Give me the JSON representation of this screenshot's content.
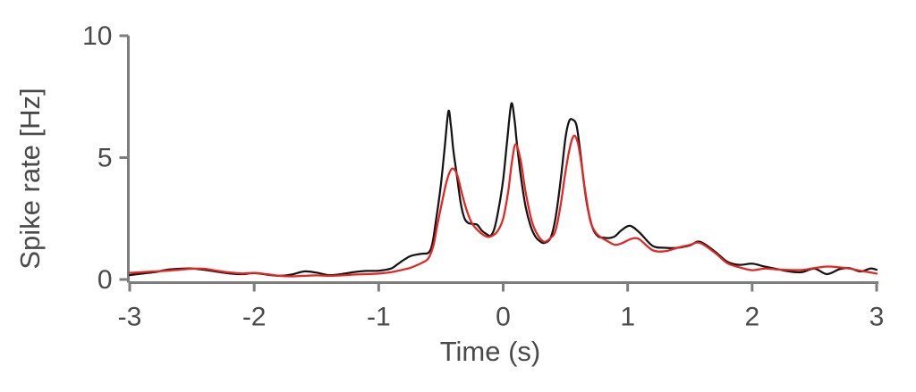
{
  "figure": {
    "ylabel": "Spike rate [Hz]",
    "xlabel": "Time (s)"
  },
  "chart_data": {
    "type": "line",
    "title": "",
    "xlabel": "Time (s)",
    "ylabel": "Spike rate [Hz]",
    "xlim": [
      -3,
      3
    ],
    "ylim": [
      0,
      10
    ],
    "x_ticks": [
      -3,
      -2,
      -1,
      0,
      1,
      2,
      3
    ],
    "y_ticks": [
      0,
      5,
      10
    ],
    "grid": false,
    "legend": "none",
    "colors": {
      "series_black": "#141414",
      "series_red": "#e62420",
      "axis": "#7d7d7d",
      "text": "#4a4a4a"
    },
    "series": [
      {
        "name": "black-trace",
        "color": "#141414",
        "points": [
          [
            -3.0,
            0.18
          ],
          [
            -2.9,
            0.24
          ],
          [
            -2.8,
            0.3
          ],
          [
            -2.7,
            0.4
          ],
          [
            -2.6,
            0.44
          ],
          [
            -2.5,
            0.45
          ],
          [
            -2.4,
            0.4
          ],
          [
            -2.3,
            0.32
          ],
          [
            -2.2,
            0.25
          ],
          [
            -2.1,
            0.22
          ],
          [
            -2.0,
            0.26
          ],
          [
            -1.9,
            0.2
          ],
          [
            -1.8,
            0.15
          ],
          [
            -1.7,
            0.2
          ],
          [
            -1.6,
            0.33
          ],
          [
            -1.5,
            0.28
          ],
          [
            -1.4,
            0.18
          ],
          [
            -1.3,
            0.22
          ],
          [
            -1.2,
            0.3
          ],
          [
            -1.1,
            0.35
          ],
          [
            -1.0,
            0.36
          ],
          [
            -0.9,
            0.45
          ],
          [
            -0.85,
            0.62
          ],
          [
            -0.8,
            0.8
          ],
          [
            -0.75,
            0.95
          ],
          [
            -0.7,
            1.02
          ],
          [
            -0.65,
            1.06
          ],
          [
            -0.6,
            1.1
          ],
          [
            -0.57,
            1.45
          ],
          [
            -0.54,
            2.4
          ],
          [
            -0.5,
            3.9
          ],
          [
            -0.47,
            5.4
          ],
          [
            -0.44,
            6.9
          ],
          [
            -0.42,
            6.3
          ],
          [
            -0.4,
            5.3
          ],
          [
            -0.37,
            4.2
          ],
          [
            -0.34,
            3.1
          ],
          [
            -0.31,
            2.5
          ],
          [
            -0.28,
            2.32
          ],
          [
            -0.25,
            2.28
          ],
          [
            -0.21,
            2.25
          ],
          [
            -0.17,
            2.0
          ],
          [
            -0.13,
            1.85
          ],
          [
            -0.1,
            1.8
          ],
          [
            -0.07,
            2.1
          ],
          [
            -0.04,
            2.8
          ],
          [
            0.0,
            4.1
          ],
          [
            0.03,
            5.6
          ],
          [
            0.065,
            7.2
          ],
          [
            0.09,
            6.6
          ],
          [
            0.11,
            5.6
          ],
          [
            0.14,
            4.3
          ],
          [
            0.18,
            3.0
          ],
          [
            0.22,
            2.2
          ],
          [
            0.26,
            1.75
          ],
          [
            0.3,
            1.55
          ],
          [
            0.33,
            1.5
          ],
          [
            0.38,
            1.7
          ],
          [
            0.42,
            2.5
          ],
          [
            0.46,
            4.0
          ],
          [
            0.5,
            5.8
          ],
          [
            0.53,
            6.5
          ],
          [
            0.56,
            6.55
          ],
          [
            0.59,
            6.3
          ],
          [
            0.62,
            5.2
          ],
          [
            0.65,
            3.9
          ],
          [
            0.68,
            2.9
          ],
          [
            0.72,
            2.1
          ],
          [
            0.76,
            1.78
          ],
          [
            0.8,
            1.72
          ],
          [
            0.85,
            1.7
          ],
          [
            0.9,
            1.78
          ],
          [
            0.95,
            2.02
          ],
          [
            1.02,
            2.2
          ],
          [
            1.1,
            1.9
          ],
          [
            1.2,
            1.38
          ],
          [
            1.3,
            1.3
          ],
          [
            1.4,
            1.3
          ],
          [
            1.5,
            1.4
          ],
          [
            1.58,
            1.55
          ],
          [
            1.7,
            1.15
          ],
          [
            1.8,
            0.73
          ],
          [
            1.9,
            0.6
          ],
          [
            2.0,
            0.65
          ],
          [
            2.1,
            0.53
          ],
          [
            2.2,
            0.43
          ],
          [
            2.3,
            0.33
          ],
          [
            2.4,
            0.3
          ],
          [
            2.5,
            0.45
          ],
          [
            2.6,
            0.22
          ],
          [
            2.7,
            0.42
          ],
          [
            2.78,
            0.47
          ],
          [
            2.87,
            0.33
          ],
          [
            2.95,
            0.45
          ],
          [
            3.0,
            0.4
          ]
        ]
      },
      {
        "name": "red-trace",
        "color": "#e62420",
        "points": [
          [
            -3.0,
            0.27
          ],
          [
            -2.9,
            0.3
          ],
          [
            -2.8,
            0.33
          ],
          [
            -2.7,
            0.36
          ],
          [
            -2.6,
            0.4
          ],
          [
            -2.5,
            0.44
          ],
          [
            -2.4,
            0.44
          ],
          [
            -2.3,
            0.36
          ],
          [
            -2.2,
            0.29
          ],
          [
            -2.1,
            0.25
          ],
          [
            -2.0,
            0.27
          ],
          [
            -1.9,
            0.22
          ],
          [
            -1.8,
            0.15
          ],
          [
            -1.7,
            0.13
          ],
          [
            -1.6,
            0.15
          ],
          [
            -1.5,
            0.17
          ],
          [
            -1.4,
            0.15
          ],
          [
            -1.3,
            0.17
          ],
          [
            -1.2,
            0.2
          ],
          [
            -1.1,
            0.22
          ],
          [
            -1.0,
            0.24
          ],
          [
            -0.9,
            0.3
          ],
          [
            -0.85,
            0.35
          ],
          [
            -0.8,
            0.41
          ],
          [
            -0.75,
            0.47
          ],
          [
            -0.7,
            0.57
          ],
          [
            -0.65,
            0.69
          ],
          [
            -0.6,
            0.87
          ],
          [
            -0.56,
            1.4
          ],
          [
            -0.53,
            2.2
          ],
          [
            -0.49,
            3.2
          ],
          [
            -0.45,
            4.1
          ],
          [
            -0.41,
            4.55
          ],
          [
            -0.37,
            4.3
          ],
          [
            -0.33,
            3.5
          ],
          [
            -0.29,
            2.8
          ],
          [
            -0.25,
            2.3
          ],
          [
            -0.2,
            2.0
          ],
          [
            -0.15,
            1.8
          ],
          [
            -0.11,
            1.75
          ],
          [
            -0.05,
            1.95
          ],
          [
            0.0,
            2.5
          ],
          [
            0.04,
            3.6
          ],
          [
            0.07,
            4.8
          ],
          [
            0.1,
            5.55
          ],
          [
            0.14,
            4.9
          ],
          [
            0.18,
            3.6
          ],
          [
            0.23,
            2.4
          ],
          [
            0.28,
            1.8
          ],
          [
            0.33,
            1.55
          ],
          [
            0.38,
            1.7
          ],
          [
            0.42,
            2.0
          ],
          [
            0.46,
            3.0
          ],
          [
            0.5,
            4.4
          ],
          [
            0.54,
            5.5
          ],
          [
            0.57,
            5.9
          ],
          [
            0.6,
            5.6
          ],
          [
            0.63,
            4.7
          ],
          [
            0.66,
            3.6
          ],
          [
            0.7,
            2.4
          ],
          [
            0.74,
            1.95
          ],
          [
            0.78,
            1.75
          ],
          [
            0.85,
            1.54
          ],
          [
            0.9,
            1.42
          ],
          [
            0.95,
            1.48
          ],
          [
            1.02,
            1.65
          ],
          [
            1.06,
            1.7
          ],
          [
            1.1,
            1.63
          ],
          [
            1.2,
            1.2
          ],
          [
            1.3,
            1.16
          ],
          [
            1.4,
            1.3
          ],
          [
            1.5,
            1.42
          ],
          [
            1.58,
            1.5
          ],
          [
            1.7,
            1.1
          ],
          [
            1.8,
            0.67
          ],
          [
            1.9,
            0.5
          ],
          [
            2.0,
            0.38
          ],
          [
            2.1,
            0.45
          ],
          [
            2.2,
            0.41
          ],
          [
            2.3,
            0.39
          ],
          [
            2.4,
            0.39
          ],
          [
            2.5,
            0.47
          ],
          [
            2.6,
            0.53
          ],
          [
            2.7,
            0.5
          ],
          [
            2.78,
            0.45
          ],
          [
            2.87,
            0.36
          ],
          [
            2.95,
            0.29
          ],
          [
            3.0,
            0.24
          ]
        ]
      }
    ]
  }
}
